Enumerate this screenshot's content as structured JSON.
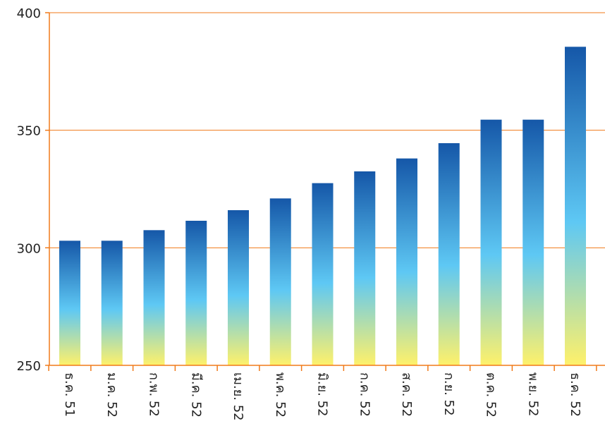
{
  "chart_data": {
    "type": "bar",
    "title": "",
    "xlabel": "",
    "ylabel": "",
    "ylim": [
      250,
      400
    ],
    "yticks": [
      250,
      300,
      350,
      400
    ],
    "grid": true,
    "categories": [
      "ธ.ค. 51",
      "ม.ค. 52",
      "ก.พ. 52",
      "มี.ค. 52",
      "เม.ย. 52",
      "พ.ค. 52",
      "มิ.ย. 52",
      "ก.ค. 52",
      "ส.ค. 52",
      "ก.ย. 52",
      "ต.ค. 52",
      "พ.ย. 52",
      "ธ.ค. 52"
    ],
    "values": [
      303,
      303,
      307.5,
      311.5,
      316,
      321,
      327.5,
      332.5,
      338,
      344.5,
      354.5,
      354.5,
      385.5
    ],
    "colors": {
      "axis": "#f07a1a",
      "grid": "#f07a1a",
      "bar_top": "#1557a8",
      "bar_mid": "#5ec8f4",
      "bar_bottom": "#fff16a"
    }
  }
}
